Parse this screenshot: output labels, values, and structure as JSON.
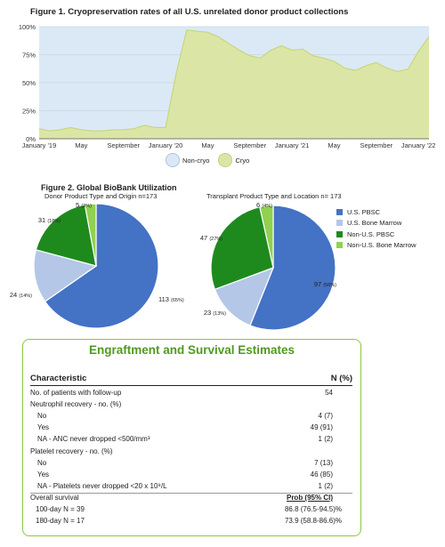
{
  "figure1": {
    "title": "Figure 1. Cryopreservation rates of all U.S. unrelated donor product collections",
    "chart_data": {
      "type": "area",
      "y_ticks": [
        "0%",
        "25%",
        "50%",
        "75%",
        "100%"
      ],
      "ylim": [
        0,
        100
      ],
      "x_tick_labels": [
        "January '19",
        "May",
        "September",
        "January '20",
        "May",
        "September",
        "January '21",
        "May",
        "September",
        "January '22"
      ],
      "x_months": [
        "2019-01",
        "2019-02",
        "2019-03",
        "2019-04",
        "2019-05",
        "2019-06",
        "2019-07",
        "2019-08",
        "2019-09",
        "2019-10",
        "2019-11",
        "2019-12",
        "2020-01",
        "2020-02",
        "2020-03",
        "2020-04",
        "2020-05",
        "2020-06",
        "2020-07",
        "2020-08",
        "2020-09",
        "2020-10",
        "2020-11",
        "2020-12",
        "2021-01",
        "2021-02",
        "2021-03",
        "2021-04",
        "2021-05",
        "2021-06",
        "2021-07",
        "2021-08",
        "2021-09",
        "2021-10",
        "2021-11",
        "2021-12",
        "2022-01",
        "2022-02"
      ],
      "series": [
        {
          "name": "Cryo",
          "color": "#dbe6a6",
          "values": [
            9,
            7,
            8,
            10,
            8,
            7,
            7,
            8,
            8,
            9,
            12,
            10,
            10,
            58,
            97,
            96,
            95,
            91,
            85,
            79,
            74,
            72,
            79,
            83,
            79,
            80,
            74,
            72,
            69,
            63,
            61,
            65,
            68,
            63,
            60,
            62,
            78,
            91
          ]
        },
        {
          "name": "Non-cryo",
          "color": "#dbe9f7"
        }
      ],
      "legend_position": "bottom"
    }
  },
  "figure2": {
    "title": "Figure 2. Global BioBank Utilization",
    "charts": [
      {
        "type": "pie",
        "subtitle": "Donor Product Type and Origin n=173",
        "slices": [
          {
            "label": "113",
            "pct": "(65%)",
            "value": 113,
            "color": "#4472c4"
          },
          {
            "label": "24",
            "pct": "(14%)",
            "value": 24,
            "color": "#b4c7e7"
          },
          {
            "label": "31",
            "pct": "(18%)",
            "value": 31,
            "color": "#1e8a1e"
          },
          {
            "label": "5",
            "pct": "(3%)",
            "value": 5,
            "color": "#92d050"
          }
        ]
      },
      {
        "type": "pie",
        "subtitle": "Transplant Product Type and Location n= 173",
        "slices": [
          {
            "label": "97",
            "pct": "(56%)",
            "value": 97,
            "color": "#4472c4"
          },
          {
            "label": "23",
            "pct": "(13%)",
            "value": 23,
            "color": "#b4c7e7"
          },
          {
            "label": "47",
            "pct": "(27%)",
            "value": 47,
            "color": "#1e8a1e"
          },
          {
            "label": "6",
            "pct": "(4%)",
            "value": 6,
            "color": "#92d050"
          }
        ]
      }
    ],
    "legend": [
      {
        "label": "U.S. PBSC",
        "color": "#4472c4"
      },
      {
        "label": "U.S. Bone Marrow",
        "color": "#b4c7e7"
      },
      {
        "label": "Non-U.S. PBSC",
        "color": "#1e8a1e"
      },
      {
        "label": "Non-U.S. Bone Marrow",
        "color": "#92d050"
      }
    ]
  },
  "table": {
    "title": "Engraftment and Survival Estimates",
    "header": {
      "label": "Characteristic",
      "value": "N (%)"
    },
    "rows": [
      {
        "label": "No. of patients with follow-up",
        "value": "54"
      },
      {
        "label": "Neutrophil recovery - no. (%)",
        "value": ""
      },
      {
        "label": "No",
        "value": "4 (7)"
      },
      {
        "label": "Yes",
        "value": "49 (91)"
      },
      {
        "label": "NA - ANC never dropped <500/mm³",
        "value": "1 (2)"
      },
      {
        "label": "Platelet recovery - no. (%)",
        "value": ""
      },
      {
        "label": "No",
        "value": "7 (13)"
      },
      {
        "label": "Yes",
        "value": "46 (85)"
      },
      {
        "label": "NA - Platelets never dropped <20 x 10⁹/L",
        "value": "1 (2)"
      },
      {
        "label": "Overall survival",
        "value": "Prob (95% CI)"
      },
      {
        "label": "100-day N = 39",
        "value": "86.8 (76.5-94.5)%"
      },
      {
        "label": "180-day N = 17",
        "value": "73.9 (58.8-86.6)%"
      }
    ]
  }
}
